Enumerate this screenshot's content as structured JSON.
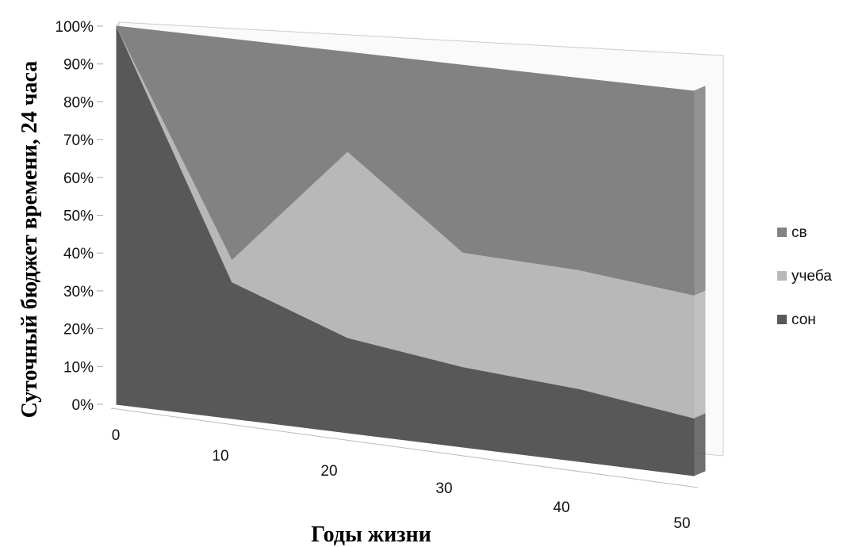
{
  "chart_data": {
    "type": "area",
    "stacked": "percent",
    "x": [
      0,
      10,
      20,
      30,
      40,
      50
    ],
    "series": [
      {
        "name": "сон",
        "values": [
          100,
          36,
          25,
          21,
          19,
          15
        ],
        "color": "#585858"
      },
      {
        "name": "учеба",
        "values": [
          0,
          6,
          49,
          30,
          31,
          32
        ],
        "color": "#b8b8b8"
      },
      {
        "name": "св",
        "values": [
          0,
          58,
          26,
          49,
          50,
          53
        ],
        "color": "#828282"
      }
    ],
    "y_ticks": [
      "0%",
      "10%",
      "20%",
      "30%",
      "40%",
      "50%",
      "60%",
      "70%",
      "80%",
      "90%",
      "100%"
    ],
    "x_ticks": [
      "0",
      "10",
      "20",
      "30",
      "40",
      "50"
    ],
    "ylim": [
      0,
      100
    ],
    "xlabel": "Годы жизни",
    "ylabel": "Суточный бюджет времени, 24 часа",
    "legend": {
      "position": "right",
      "order": [
        "св",
        "учеба",
        "сон"
      ]
    },
    "view": "3d",
    "grid": false
  }
}
